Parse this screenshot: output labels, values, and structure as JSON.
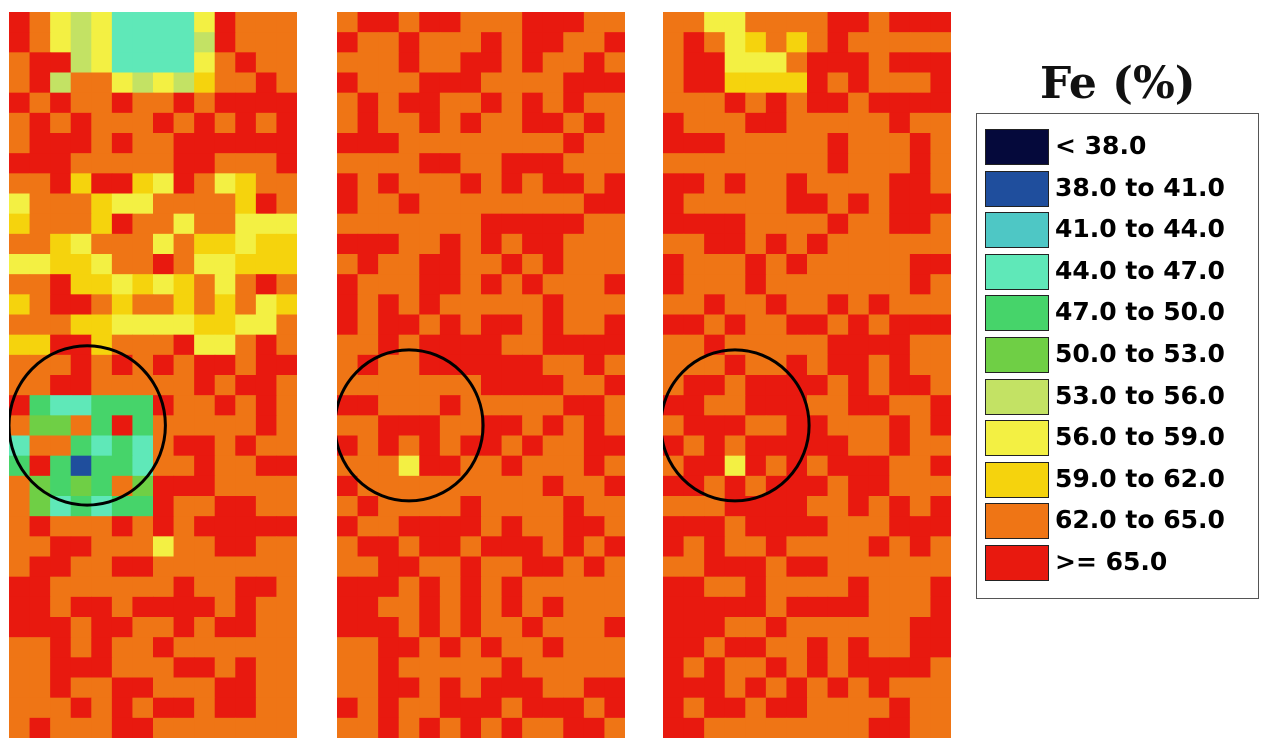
{
  "chart_data": {
    "type": "heatmap",
    "title": "Fe (%)",
    "colorbar": [
      {
        "label": "< 38.0",
        "min": null,
        "max": 38.0,
        "color": "#05093b"
      },
      {
        "label": "38.0 to 41.0",
        "min": 38.0,
        "max": 41.0,
        "color": "#1f4e9d"
      },
      {
        "label": "41.0 to 44.0",
        "min": 41.0,
        "max": 44.0,
        "color": "#4ec7c5"
      },
      {
        "label": "44.0 to 47.0",
        "min": 44.0,
        "max": 47.0,
        "color": "#5fe8b8"
      },
      {
        "label": "47.0 to 50.0",
        "min": 47.0,
        "max": 50.0,
        "color": "#46d46a"
      },
      {
        "label": "50.0 to 53.0",
        "min": 50.0,
        "max": 53.0,
        "color": "#6fcf45"
      },
      {
        "label": "53.0 to 56.0",
        "min": 53.0,
        "max": 56.0,
        "color": "#c3e264"
      },
      {
        "label": "56.0 to 59.0",
        "min": 56.0,
        "max": 59.0,
        "color": "#f3f043"
      },
      {
        "label": "59.0 to 62.0",
        "min": 59.0,
        "max": 62.0,
        "color": "#f5d30d"
      },
      {
        "label": "62.0 to 65.0",
        "min": 62.0,
        "max": 65.0,
        "color": "#ef7515"
      },
      {
        "label": ">= 65.0",
        "min": 65.0,
        "max": null,
        "color": "#e8190f"
      }
    ],
    "panels": [
      {
        "name": "map-1",
        "rows": 36,
        "cols": 14,
        "regions": [
          {
            "kind": "high-fe-low",
            "note": "yellow/green band",
            "rows": [
              0,
              3
            ],
            "cols": [
              2,
              9
            ],
            "fe": 56.5
          },
          {
            "kind": "cyan-spot",
            "rows": [
              0,
              2
            ],
            "cols": [
              5,
              8
            ],
            "fe": 45.0
          },
          {
            "kind": "yellow-mid",
            "rows": [
              8,
              16
            ],
            "cols": [
              0,
              13
            ],
            "fe": 60.5
          },
          {
            "kind": "cyan-zone",
            "rows": [
              19,
              24
            ],
            "cols": [
              0,
              6
            ],
            "fe": 47.5
          },
          {
            "kind": "min-cell",
            "rows": [
              22,
              22
            ],
            "cols": [
              3,
              3
            ],
            "fe": 39.5
          },
          {
            "kind": "yellow-spot",
            "rows": [
              26,
              26
            ],
            "cols": [
              5,
              7
            ],
            "fe": 59.5
          },
          {
            "kind": "dark-red",
            "rows": [
              28,
              32
            ],
            "cols": [
              0,
              2
            ],
            "fe": 67.0
          }
        ],
        "circle": {
          "center_row": 20.5,
          "center_col": 3.8,
          "radius_cells": 3.8
        }
      },
      {
        "name": "map-2",
        "rows": 36,
        "cols": 14,
        "regions": [
          {
            "kind": "dark-red",
            "rows": [
              28,
              31
            ],
            "cols": [
              0,
              2
            ],
            "fe": 67.0
          },
          {
            "kind": "yellow-cell",
            "rows": [
              22,
              22
            ],
            "cols": [
              3,
              3
            ],
            "fe": 56.5
          }
        ],
        "circle": {
          "center_row": 20.5,
          "center_col": 3.5,
          "radius_cells": 3.6
        }
      },
      {
        "name": "map-3",
        "rows": 36,
        "cols": 14,
        "regions": [
          {
            "kind": "yellow-top",
            "rows": [
              0,
              3
            ],
            "cols": [
              2,
              6
            ],
            "fe": 60.0
          },
          {
            "kind": "dark-red",
            "rows": [
              28,
              31
            ],
            "cols": [
              0,
              2
            ],
            "fe": 67.0
          },
          {
            "kind": "yellow-cell",
            "rows": [
              22,
              22
            ],
            "cols": [
              3,
              3
            ],
            "fe": 58.0
          }
        ],
        "circle": {
          "center_row": 20.5,
          "center_col": 3.5,
          "radius_cells": 3.6
        }
      }
    ]
  }
}
